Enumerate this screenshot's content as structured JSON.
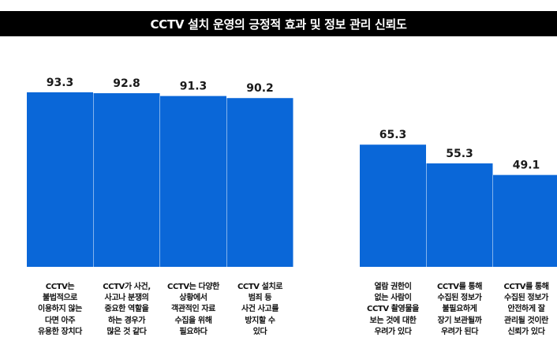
{
  "title": "CCTV 설치 운영의 긍정적 효과 및 정보 관리 신뢰도",
  "colors": {
    "bar": "#0a67d8",
    "title_bg": "#000000"
  },
  "chart_data": {
    "type": "bar",
    "title": "CCTV 설치 운영의 긍정적 효과 및 정보 관리 신뢰도",
    "xlabel": "",
    "ylabel": "",
    "ylim": [
      0,
      100
    ],
    "grid": false,
    "groups": [
      {
        "categories": [
          [
            "CCTV는",
            "불법적으로",
            "이용하지 않는",
            "다면 아주",
            "유용한 장치다"
          ],
          [
            "CCTV가 사건,",
            "사고나 분쟁의",
            "중요한 역할을",
            "하는 경우가",
            "많은 것 같다"
          ],
          [
            "CCTV는 다양한",
            "상황에서",
            "객관적인 자료",
            "수집을 위해",
            "필요하다"
          ],
          [
            "CCTV 설치로",
            "범죄 등",
            "사건 사고를",
            "방지할 수",
            "있다"
          ]
        ],
        "values": [
          93.3,
          92.8,
          91.3,
          90.2
        ]
      },
      {
        "categories": [
          [
            "열람 권한이",
            "없는 사람이",
            "CCTV 촬영물을",
            "보는 것에 대한",
            "우려가 있다"
          ],
          [
            "CCTV를 통해",
            "수집된 정보가",
            "불필요하게",
            "장기 보관될까",
            "우려가 된다"
          ],
          [
            "CCTV를 통해",
            "수집된 정보가",
            "안전하게 잘",
            "관리될 것이란",
            "신뢰가 있다"
          ]
        ],
        "values": [
          65.3,
          55.3,
          49.1
        ]
      }
    ]
  }
}
